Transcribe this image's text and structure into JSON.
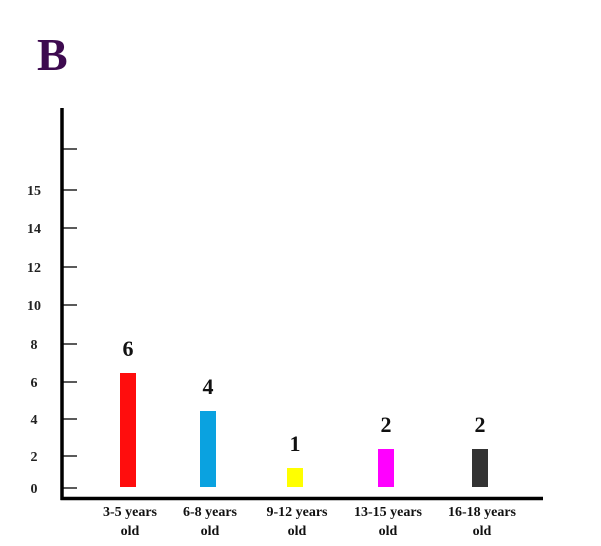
{
  "chart_data": {
    "type": "bar",
    "title": "B",
    "xlabel": "",
    "ylabel": "",
    "categories": [
      [
        "3-5 years",
        "old"
      ],
      [
        "6-8 years",
        "old"
      ],
      [
        "9-12 years",
        "old"
      ],
      [
        "13-15 years",
        "old"
      ],
      [
        "16-18 years",
        "old"
      ]
    ],
    "values": [
      6,
      4,
      1,
      2,
      2
    ],
    "data_labels": [
      "6",
      "4",
      "1",
      "2",
      "2"
    ],
    "colors": [
      "#ff0d0d",
      "#0aa2e0",
      "#ffff00",
      "#ff00ff",
      "#333333"
    ],
    "y_tick_labels": [
      "0",
      "2",
      "4",
      "6",
      "8",
      "10",
      "12",
      "14",
      "15",
      ""
    ],
    "ylim": [
      0,
      18
    ],
    "grid": false,
    "legend": "none"
  }
}
